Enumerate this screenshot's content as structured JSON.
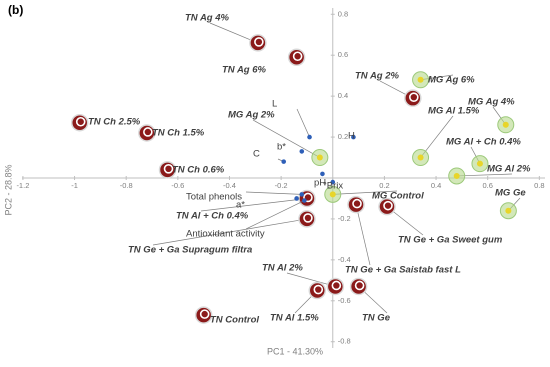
{
  "chart_data": {
    "type": "scatter",
    "title": "(b)",
    "x_label": "PC1 - 41.30%",
    "y_label": "PC2 - 28.8%",
    "xlim": [
      -1.25,
      0.88
    ],
    "ylim": [
      -0.86,
      0.86
    ],
    "xticks": [
      -1.2,
      -1,
      -0.8,
      -0.6,
      -0.4,
      -0.2,
      0.2,
      0.4,
      0.6,
      0.8
    ],
    "yticks": [
      0.8,
      0.6,
      0.4,
      0.2,
      -0.2,
      -0.4,
      -0.6,
      -0.8
    ],
    "series": [
      {
        "color": "#8b1a1a",
        "labels": [
          "TN Ag 4%",
          "TN Ag 6%",
          "TN Ch 2.5%",
          "TN Ch 1.5%",
          "TN Ch 0.6%",
          "TN Ag 2%",
          "TN Al + Ch 0.4%",
          "TN Ge + Ga Supragum filtra",
          "TN Ge + Ga Sweet gum",
          "TN Ge + Ga Saistab fast L",
          "TN Al 2%",
          "TN Al 1.5%",
          "TN Ge",
          "TN Control"
        ],
        "x": [
          -0.29,
          -0.14,
          -0.98,
          -0.72,
          -0.64,
          0.31,
          -0.1,
          -0.1,
          0.21,
          0.09,
          0.01,
          -0.06,
          0.1,
          -0.5
        ],
        "values": [
          0.66,
          0.59,
          0.27,
          0.22,
          0.04,
          0.39,
          -0.1,
          -0.2,
          -0.14,
          -0.13,
          -0.53,
          -0.55,
          -0.53,
          -0.67
        ]
      },
      {
        "color": "#b5d98a",
        "labels": [
          "MG Ag 6%",
          "MG Ag 2%",
          "MG Al 1.5%",
          "MG Ag 4%",
          "MG Al + Ch 0.4%",
          "MG Al 2%",
          "MG Ge",
          "MG Control"
        ],
        "x": [
          0.34,
          -0.05,
          0.34,
          0.67,
          0.57,
          0.48,
          0.68,
          0.0
        ],
        "values": [
          0.48,
          0.1,
          0.1,
          0.26,
          0.07,
          0.01,
          -0.16,
          -0.08
        ]
      },
      {
        "color": "#2e5fb8",
        "labels": [
          "L",
          "H",
          "b*",
          "C",
          "pH",
          "°Brix",
          "Total phenols",
          "a*",
          "Antioxidant activity"
        ],
        "x": [
          -0.09,
          0.08,
          -0.12,
          -0.19,
          -0.04,
          0.0,
          -0.12,
          -0.14,
          -0.11
        ],
        "values": [
          0.2,
          0.2,
          0.13,
          0.08,
          0.02,
          -0.02,
          -0.08,
          -0.1,
          -0.11
        ]
      }
    ]
  }
}
